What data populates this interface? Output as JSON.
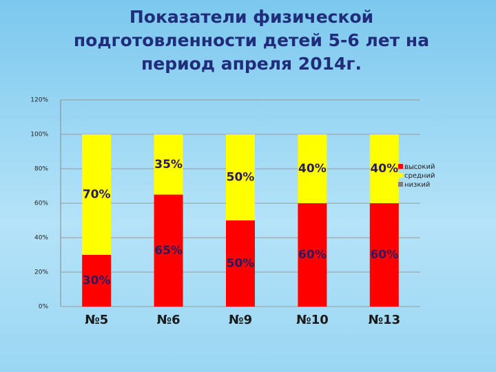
{
  "chart_data": {
    "type": "stacked_bar",
    "title": "Показатели физической подготовленности детей 5-6 лет на период апреля 2014г.",
    "categories": [
      "№5",
      "№6",
      "№9",
      "№10",
      "№13"
    ],
    "series": [
      {
        "name": "высокий",
        "color": "#ff0000",
        "values": [
          30,
          65,
          50,
          60,
          60
        ],
        "value_labels": [
          "30%",
          "65%",
          "50%",
          "60%",
          "60%"
        ]
      },
      {
        "name": "средний",
        "color": "#ffff00",
        "values": [
          70,
          35,
          50,
          40,
          40
        ],
        "value_labels": [
          "70%",
          "35%",
          "50%",
          "40%",
          "40%"
        ]
      },
      {
        "name": "низкий",
        "color": "#808080",
        "values": [
          0,
          0,
          0,
          0,
          0
        ]
      }
    ],
    "ylim": [
      0,
      120
    ],
    "yticks": [
      {
        "value": 0,
        "label": "0%"
      },
      {
        "value": 20,
        "label": "20%"
      },
      {
        "value": 40,
        "label": "40%"
      },
      {
        "value": 60,
        "label": "60%"
      },
      {
        "value": 80,
        "label": "80%"
      },
      {
        "value": 100,
        "label": "100%"
      },
      {
        "value": 120,
        "label": "120%"
      }
    ],
    "grid": true
  }
}
